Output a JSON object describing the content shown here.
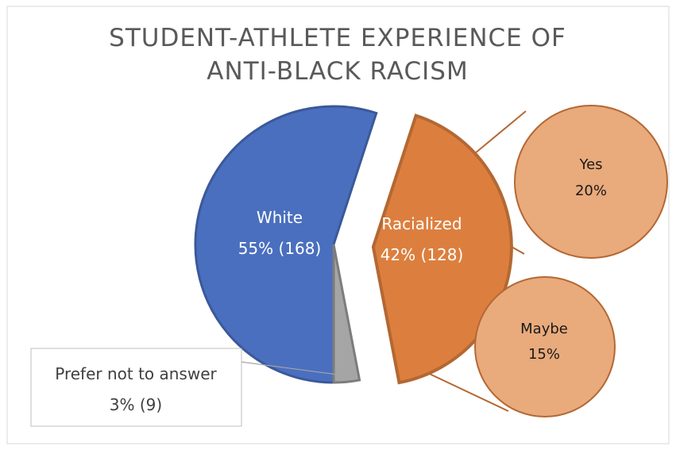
{
  "chart_data": {
    "type": "pie",
    "title_lines": [
      "STUDENT-ATHLETE EXPERIENCE OF",
      "ANTI-BLACK RACISM"
    ],
    "slices": [
      {
        "name": "White",
        "percent": 55,
        "count": 168,
        "label": "55% (168)",
        "color": "#4a6fbf"
      },
      {
        "name": "Racialized",
        "percent": 42,
        "count": 128,
        "label": "42% (128)",
        "color": "#dc7f3e"
      },
      {
        "name": "Prefer not to answer",
        "percent": 3,
        "count": 9,
        "label": "3% (9)",
        "color": "#a5a5a5"
      }
    ],
    "breakdown": {
      "parent": "Racialized",
      "items": [
        {
          "name": "Yes",
          "percent": 20,
          "label": "20%",
          "color": "#e9aa7c"
        },
        {
          "name": "Maybe",
          "percent": 15,
          "label": "15%",
          "color": "#e9aa7c"
        }
      ]
    },
    "legend": "none"
  }
}
